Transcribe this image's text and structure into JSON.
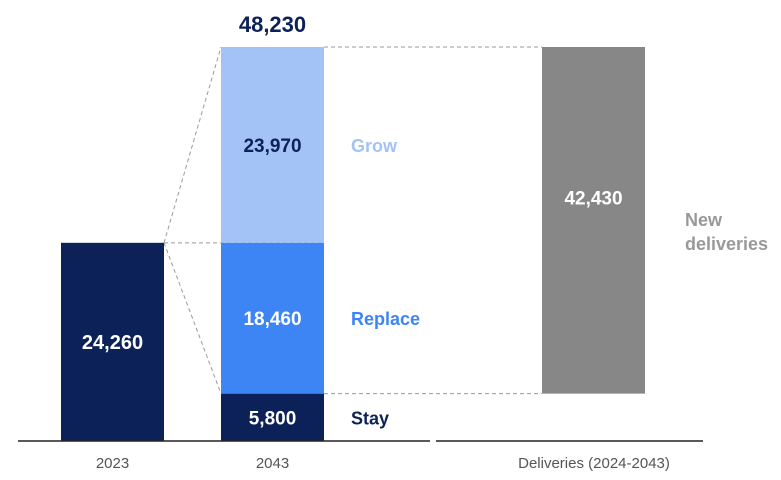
{
  "chart_data": {
    "type": "bar",
    "categories": [
      "2023",
      "2043",
      "Deliveries (2024-2043)"
    ],
    "total_2043": "48,230",
    "bars": {
      "fleet_2023": {
        "value": 24260,
        "label": "24,260",
        "color": "#0c2157"
      },
      "stay": {
        "value": 5800,
        "label": "5,800",
        "name": "Stay",
        "color": "#0c2157"
      },
      "replace": {
        "value": 18460,
        "label": "18,460",
        "name": "Replace",
        "color": "#3d85f4"
      },
      "grow": {
        "value": 23970,
        "label": "23,970",
        "name": "Grow",
        "color": "#a3c2f6"
      },
      "deliveries": {
        "value": 42430,
        "label": "42,430",
        "name_line1": "New",
        "name_line2": "deliveries",
        "color": "#878787"
      }
    },
    "ylim": [
      0,
      48230
    ],
    "grid": false
  }
}
